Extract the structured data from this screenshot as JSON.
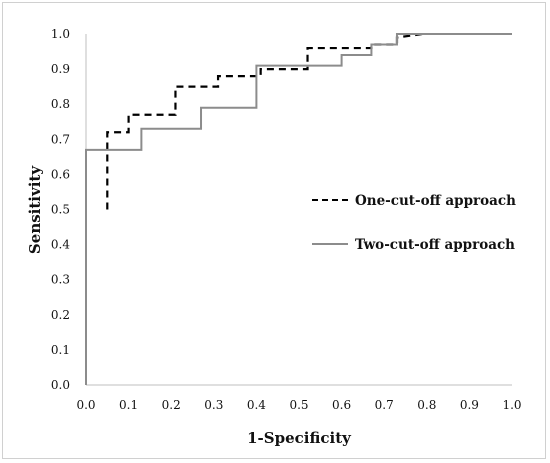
{
  "chart_data": {
    "type": "line",
    "xlabel": "1-Specificity",
    "ylabel": "Sensitivity",
    "xlim": [
      0.0,
      1.0
    ],
    "ylim": [
      0.0,
      1.0
    ],
    "x_ticks": [
      "0.0",
      "0.1",
      "0.2",
      "0.3",
      "0.4",
      "0.5",
      "0.6",
      "0.7",
      "0.8",
      "0.9",
      "1.0"
    ],
    "y_ticks": [
      "0.0",
      "0.1",
      "0.2",
      "0.3",
      "0.4",
      "0.5",
      "0.6",
      "0.7",
      "0.8",
      "0.9",
      "1.0"
    ],
    "grid": false,
    "legend_position": "right",
    "series": [
      {
        "name": "One-cut-off approach",
        "style": "dashed",
        "color": "#000000",
        "x": [
          0.05,
          0.05,
          0.1,
          0.1,
          0.21,
          0.21,
          0.31,
          0.31,
          0.41,
          0.41,
          0.52,
          0.52,
          0.67,
          0.67,
          0.73,
          0.73,
          0.79
        ],
        "y": [
          0.5,
          0.72,
          0.72,
          0.77,
          0.77,
          0.85,
          0.85,
          0.88,
          0.88,
          0.9,
          0.9,
          0.96,
          0.96,
          0.97,
          0.97,
          0.99,
          1.0
        ]
      },
      {
        "name": "Two-cut-off approach",
        "style": "solid",
        "color": "#8c8c8c",
        "x": [
          0.0,
          0.0,
          0.13,
          0.13,
          0.27,
          0.27,
          0.4,
          0.4,
          0.6,
          0.6,
          0.67,
          0.67,
          0.73,
          0.73,
          1.0
        ],
        "y": [
          0.0,
          0.67,
          0.67,
          0.73,
          0.73,
          0.79,
          0.79,
          0.91,
          0.91,
          0.94,
          0.94,
          0.97,
          0.97,
          1.0,
          1.0
        ]
      }
    ]
  }
}
